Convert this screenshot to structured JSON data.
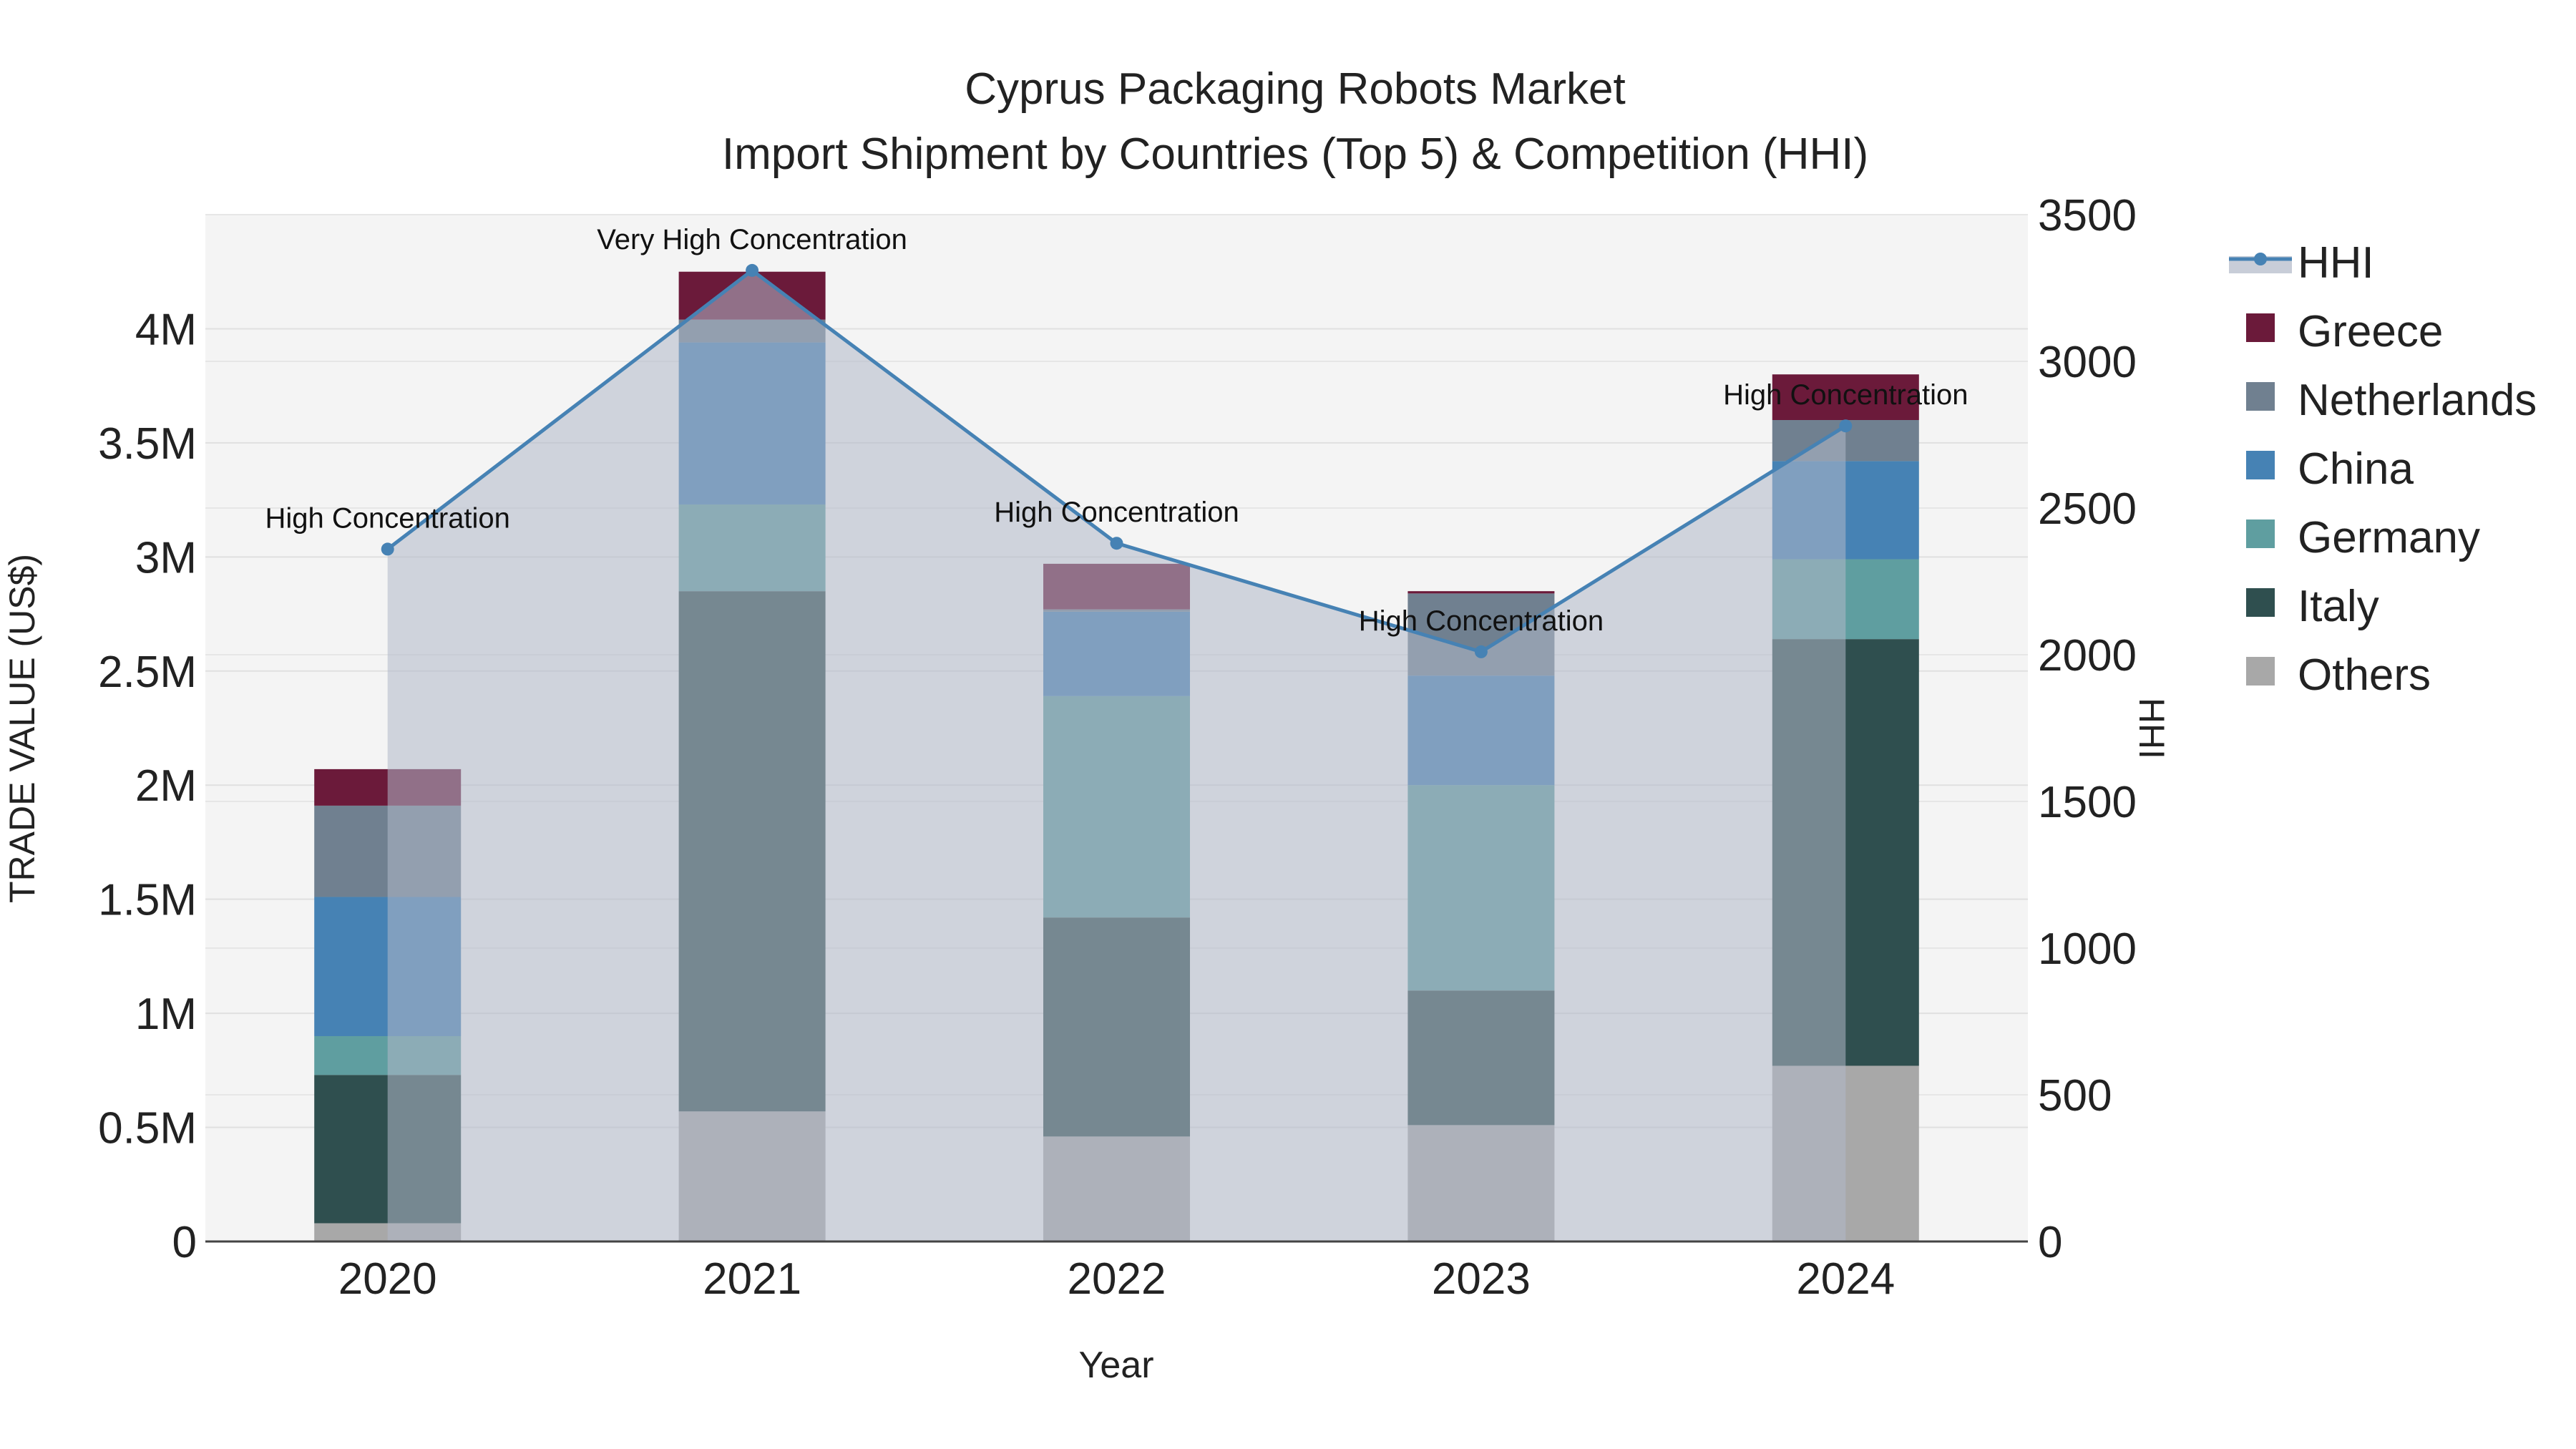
{
  "chart_data": {
    "type": "bar",
    "subtype": "stacked-bar-with-line-overlay",
    "title": "Cyprus Packaging Robots Market",
    "subtitle": "Import Shipment by Countries (Top 5) & Competition (HHI)",
    "xlabel": "Year",
    "ylabel": "TRADE VALUE (US$)",
    "y2label": "HHI",
    "categories": [
      "2020",
      "2021",
      "2022",
      "2023",
      "2024"
    ],
    "ylim": [
      0,
      4500000
    ],
    "y_ticks": [
      0,
      500000,
      1000000,
      1500000,
      2000000,
      2500000,
      3000000,
      3500000,
      4000000
    ],
    "y_tick_labels": [
      "0",
      "0.5M",
      "1M",
      "1.5M",
      "2M",
      "2.5M",
      "3M",
      "3.5M",
      "4M"
    ],
    "y2lim": [
      0,
      3500
    ],
    "y2_ticks": [
      0,
      500,
      1000,
      1500,
      2000,
      2500,
      3000,
      3500
    ],
    "y2_tick_labels": [
      "0",
      "500",
      "1000",
      "1500",
      "2000",
      "2500",
      "3000",
      "3500"
    ],
    "series": [
      {
        "name": "Others",
        "color": "#a8a8a8",
        "values": [
          80000,
          570000,
          460000,
          510000,
          770000
        ]
      },
      {
        "name": "Italy",
        "color": "#2f4f4f",
        "values": [
          650000,
          2280000,
          960000,
          590000,
          1870000
        ]
      },
      {
        "name": "Germany",
        "color": "#5f9ea0",
        "values": [
          170000,
          380000,
          970000,
          900000,
          350000
        ]
      },
      {
        "name": "China",
        "color": "#4682b4",
        "values": [
          610000,
          710000,
          370000,
          480000,
          430000
        ]
      },
      {
        "name": "Netherlands",
        "color": "#708090",
        "values": [
          400000,
          100000,
          10000,
          360000,
          180000
        ]
      },
      {
        "name": "Greece",
        "color": "#6b1a3a",
        "values": [
          160000,
          210000,
          200000,
          10000,
          200000
        ]
      }
    ],
    "hhi": {
      "name": "HHI",
      "color": "#4682b4",
      "fill_color": "#b0b8c8",
      "values": [
        2360,
        3310,
        2380,
        2010,
        2780
      ],
      "annotations": [
        "High Concentration",
        "Very High Concentration",
        "High Concentration",
        "High Concentration",
        "High Concentration"
      ]
    },
    "legend": [
      "HHI",
      "Greece",
      "Netherlands",
      "China",
      "Germany",
      "Italy",
      "Others"
    ],
    "legend_position": "right",
    "grid": true
  }
}
